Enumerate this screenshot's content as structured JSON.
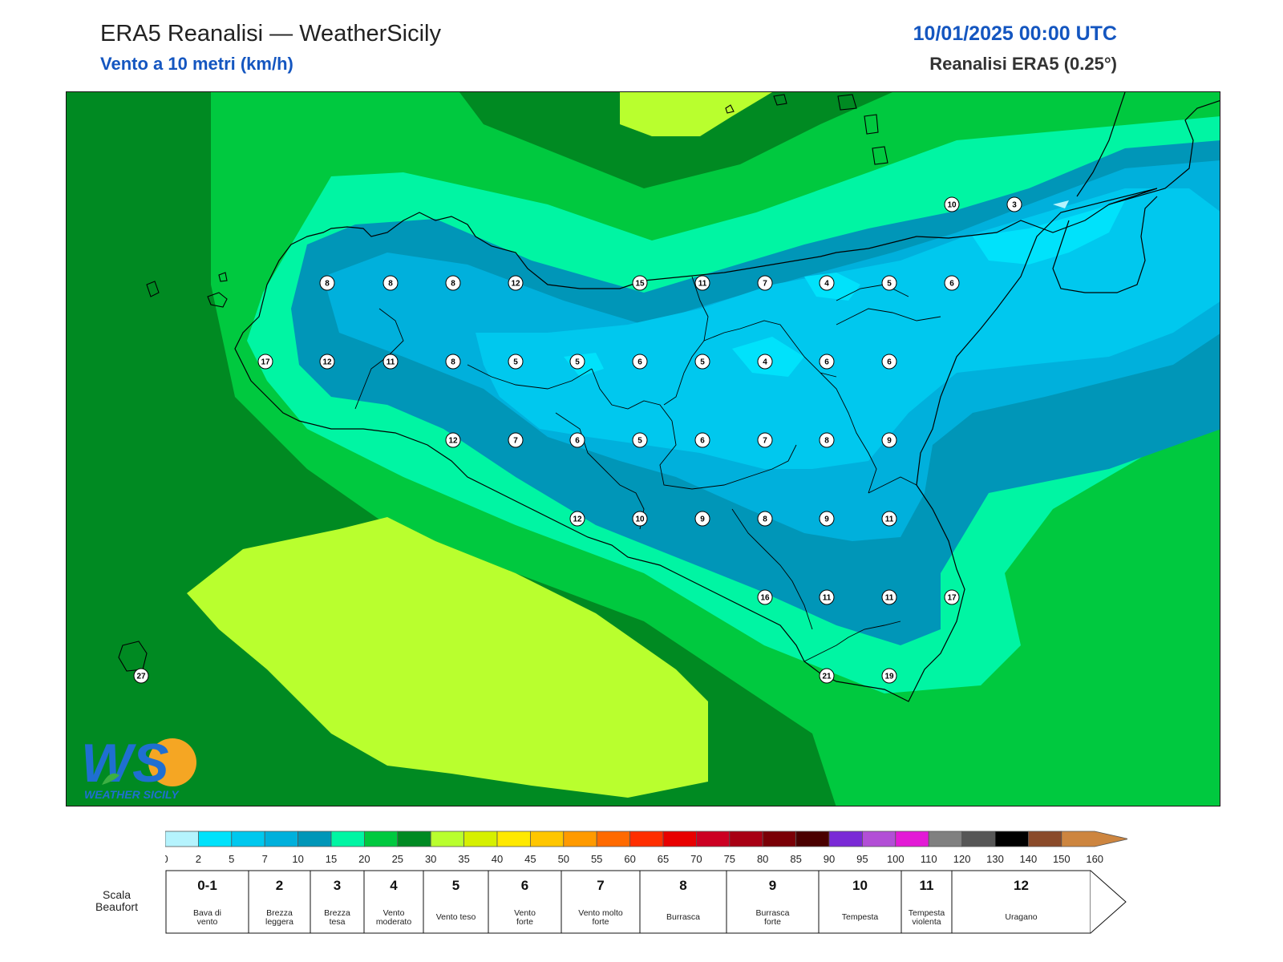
{
  "header": {
    "title": "ERA5 Reanalisi — WeatherSicily",
    "subtitle": "Vento a 10 metri (km/h)",
    "datetime": "10/01/2025 00:00 UTC",
    "source": "Reanalisi ERA5 (0.25°)"
  },
  "colors": {
    "title_blue": "#1456c0",
    "land_outline": "#000000"
  },
  "map": {
    "region": "Sicily",
    "wind_values": [
      {
        "value": "10"
      },
      {
        "value": "3"
      },
      {
        "value": "8"
      },
      {
        "value": "8"
      },
      {
        "value": "8"
      },
      {
        "value": "12"
      },
      {
        "value": "15"
      },
      {
        "value": "11"
      },
      {
        "value": "7"
      },
      {
        "value": "4"
      },
      {
        "value": "5"
      },
      {
        "value": "6"
      },
      {
        "value": "17"
      },
      {
        "value": "12"
      },
      {
        "value": "11"
      },
      {
        "value": "8"
      },
      {
        "value": "5"
      },
      {
        "value": "5"
      },
      {
        "value": "6"
      },
      {
        "value": "5"
      },
      {
        "value": "4"
      },
      {
        "value": "6"
      },
      {
        "value": "6"
      },
      {
        "value": "12"
      },
      {
        "value": "7"
      },
      {
        "value": "6"
      },
      {
        "value": "5"
      },
      {
        "value": "6"
      },
      {
        "value": "7"
      },
      {
        "value": "8"
      },
      {
        "value": "9"
      },
      {
        "value": "12"
      },
      {
        "value": "10"
      },
      {
        "value": "9"
      },
      {
        "value": "8"
      },
      {
        "value": "9"
      },
      {
        "value": "11"
      },
      {
        "value": "16"
      },
      {
        "value": "11"
      },
      {
        "value": "11"
      },
      {
        "value": "17"
      },
      {
        "value": "27"
      },
      {
        "value": "21"
      },
      {
        "value": "19"
      }
    ]
  },
  "colorbar": {
    "bins": [
      {
        "color": "#b5f3fd"
      },
      {
        "color": "#00e2fb"
      },
      {
        "color": "#00c8ee"
      },
      {
        "color": "#00b0dc"
      },
      {
        "color": "#0096b8"
      },
      {
        "color": "#00f5a3"
      },
      {
        "color": "#00c93f"
      },
      {
        "color": "#008a22"
      },
      {
        "color": "#b9ff2e"
      },
      {
        "color": "#d6f000"
      },
      {
        "color": "#ffe900"
      },
      {
        "color": "#ffc600"
      },
      {
        "color": "#ff9a00"
      },
      {
        "color": "#ff6a00"
      },
      {
        "color": "#ff2e00"
      },
      {
        "color": "#e80000"
      },
      {
        "color": "#cc0022"
      },
      {
        "color": "#a80014"
      },
      {
        "color": "#7a0006"
      },
      {
        "color": "#4a0000"
      },
      {
        "color": "#7a2ad6"
      },
      {
        "color": "#b24ed6"
      },
      {
        "color": "#e31ad6"
      },
      {
        "color": "#808080"
      },
      {
        "color": "#565656"
      },
      {
        "color": "#000000"
      },
      {
        "color": "#8a4a2a"
      },
      {
        "color": "#cd853f"
      }
    ],
    "ticks": [
      "0",
      "2",
      "5",
      "7",
      "10",
      "15",
      "20",
      "25",
      "30",
      "35",
      "40",
      "45",
      "50",
      "55",
      "60",
      "65",
      "70",
      "75",
      "80",
      "85",
      "90",
      "95",
      "100",
      "110",
      "120",
      "130",
      "140",
      "150",
      "160"
    ]
  },
  "beaufort": {
    "label": "Scala Beaufort",
    "levels": [
      {
        "num": "0-1",
        "desc": [
          "Bava di",
          "vento"
        ]
      },
      {
        "num": "2",
        "desc": [
          "Brezza",
          "leggera"
        ]
      },
      {
        "num": "3",
        "desc": [
          "Brezza",
          "tesa"
        ]
      },
      {
        "num": "4",
        "desc": [
          "Vento",
          "moderato"
        ]
      },
      {
        "num": "5",
        "desc": [
          "Vento teso"
        ]
      },
      {
        "num": "6",
        "desc": [
          "Vento",
          "forte"
        ]
      },
      {
        "num": "7",
        "desc": [
          "Vento molto",
          "forte"
        ]
      },
      {
        "num": "8",
        "desc": [
          "Burrasca"
        ]
      },
      {
        "num": "9",
        "desc": [
          "Burrasca",
          "forte"
        ]
      },
      {
        "num": "10",
        "desc": [
          "Tempesta"
        ]
      },
      {
        "num": "11",
        "desc": [
          "Tempesta",
          "violenta"
        ]
      },
      {
        "num": "12",
        "desc": [
          "Uragano"
        ]
      }
    ]
  },
  "logo": {
    "letters": "WS",
    "text": "WEATHER SICILY"
  }
}
